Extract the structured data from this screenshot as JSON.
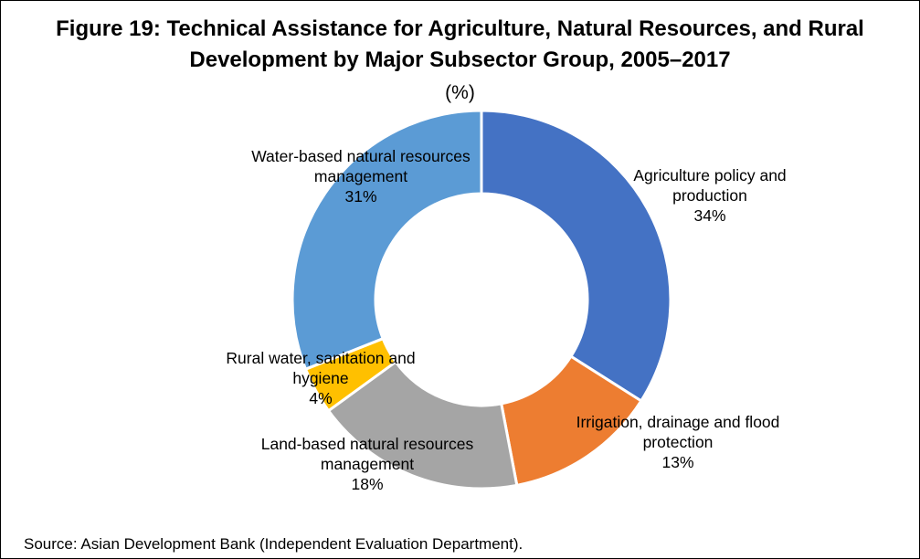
{
  "figure": {
    "title_line1": "Figure 19: Technical Assistance for Agriculture, Natural Resources, and Rural",
    "title_line2": "Development by Major Subsector Group, 2005–2017",
    "subtitle": "(%)",
    "source": "Source: Asian Development Bank (Independent Evaluation Department)."
  },
  "chart_data": {
    "type": "pie",
    "donut": true,
    "title": "Figure 19: Technical Assistance for Agriculture, Natural Resources, and Rural Development by Major Subsector Group, 2005–2017",
    "unit": "(%)",
    "categories": [
      "Agriculture policy and production",
      "Irrigation, drainage and flood protection",
      "Land-based natural resources management",
      "Rural water, sanitation and hygiene",
      "Water-based natural resources management"
    ],
    "values": [
      34,
      13,
      18,
      4,
      31
    ],
    "colors": [
      "#4472C4",
      "#ED7D31",
      "#A5A5A5",
      "#FFC000",
      "#5B9BD5"
    ],
    "labels": [
      {
        "lines": [
          "Agriculture policy and",
          "production"
        ],
        "pct": "34%"
      },
      {
        "lines": [
          "Irrigation, drainage and flood",
          "protection"
        ],
        "pct": "13%"
      },
      {
        "lines": [
          "Land-based natural resources",
          "management"
        ],
        "pct": "18%"
      },
      {
        "lines": [
          "Rural water, sanitation and",
          "hygiene"
        ],
        "pct": "4%"
      },
      {
        "lines": [
          "Water-based natural resources",
          "management"
        ],
        "pct": "31%"
      }
    ]
  }
}
